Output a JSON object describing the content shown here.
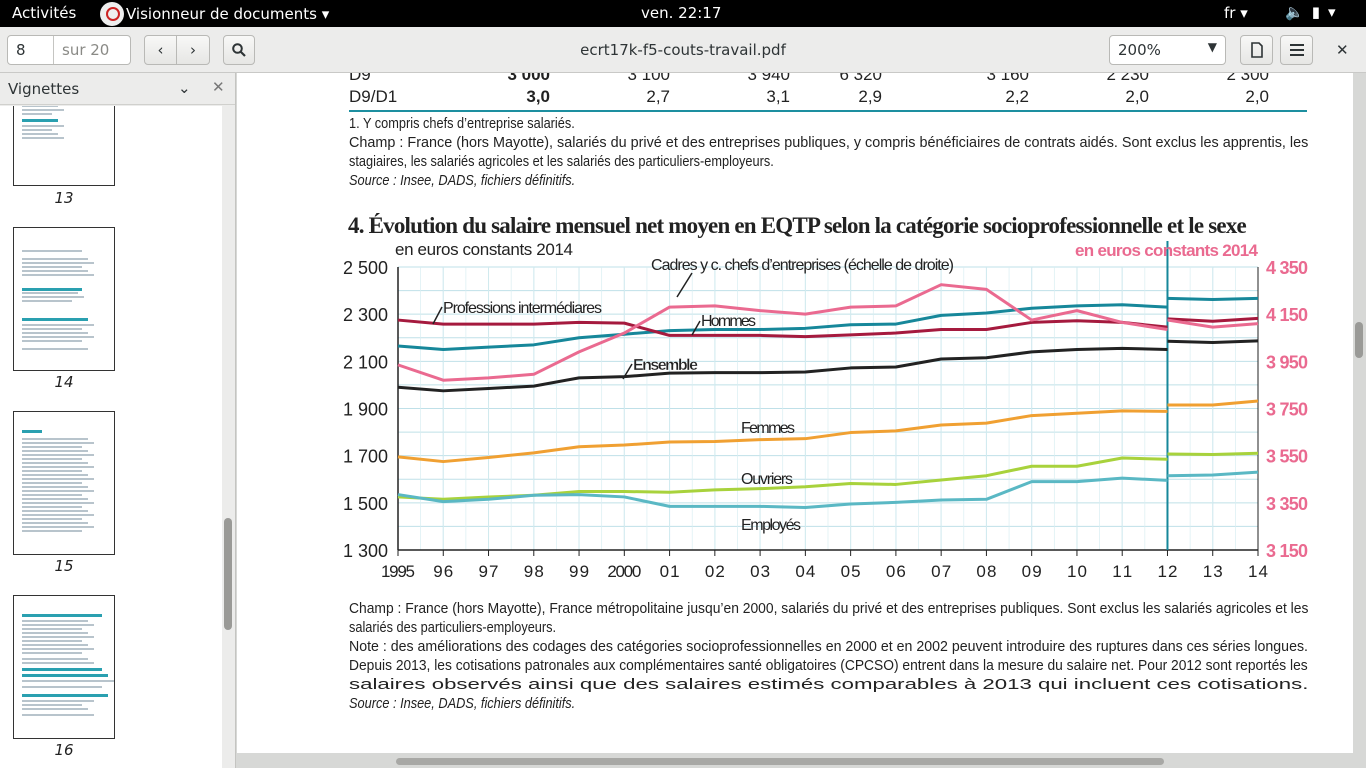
{
  "topbar": {
    "activities": "Activités",
    "app_menu": "Visionneur de documents ▾",
    "clock": "ven. 22:17",
    "lang": "fr ▾"
  },
  "toolbar": {
    "page_current": "8",
    "page_total": "sur 20",
    "doc_title": "ecrt17k-f5-couts-travail.pdf",
    "zoom": "200%"
  },
  "sidebar": {
    "title": "Vignettes",
    "thumbnails": [
      {
        "label": "13"
      },
      {
        "label": "14"
      },
      {
        "label": "15"
      },
      {
        "label": "16"
      }
    ]
  },
  "document": {
    "table_top": {
      "row_d9": [
        "D9",
        "3 000",
        "3 100",
        "3 940",
        "6 320",
        "3 160",
        "2 230",
        "2 300"
      ],
      "row_d9d1": [
        "D9/D1",
        "3,0",
        "2,7",
        "3,1",
        "2,9",
        "2,2",
        "2,0",
        "2,0"
      ]
    },
    "notes_top": [
      "1. Y compris chefs d’entreprise salariés.",
      "Champ : France (hors Mayotte), salariés du privé et des entreprises publiques, y compris bénéficiaires de contrats aidés. Sont exclus les apprentis, les",
      "stagiaires, les salariés agricoles et les salariés des particuliers-employeurs.",
      "Source : Insee, DADS, fichiers définitifs."
    ],
    "chart_heading": "4. Évolution du salaire mensuel net moyen en EQTP selon la catégorie socioprofessionnelle et le sexe",
    "notes_bottom": [
      "Champ : France (hors Mayotte), France métropolitaine jusqu’en 2000, salariés du privé et des entreprises publiques. Sont exclus les salariés agricoles et les",
      "salariés des particuliers-employeurs.",
      "Note : des améliorations des codages des catégories socioprofessionnelles en 2000 et en 2002 peuvent introduire des ruptures dans ces séries longues.",
      "Depuis 2013, les cotisations patronales aux complémentaires santé obligatoires (CPCSO) entrent dans la mesure du salaire net. Pour 2012 sont reportés les",
      "salaires observés ainsi que des salaires estimés comparables à 2013 qui incluent ces cotisations.",
      "Source : Insee, DADS, fichiers définitifs."
    ]
  },
  "colors": {
    "hommes": "#16879a",
    "prof_inter": "#a51a3e",
    "ensemble": "#222222",
    "femmes": "#f0a032",
    "ouvriers": "#a8d23c",
    "employes": "#5ab8c4",
    "cadres": "#ea6a90",
    "rule": "#1d8fa0"
  },
  "chart_data": {
    "type": "line",
    "title": "4. Évolution du salaire mensuel net moyen en EQTP selon la catégorie socioprofessionnelle et le sexe",
    "ylabel_left": "en euros constants 2014",
    "ylabel_right": "en euros constants 2014",
    "x_ticks": [
      "1995",
      "96",
      "97",
      "98",
      "99",
      "2000",
      "01",
      "02",
      "03",
      "04",
      "05",
      "06",
      "07",
      "08",
      "09",
      "10",
      "11",
      "12",
      "13",
      "14"
    ],
    "ylim_left": [
      1300,
      2500
    ],
    "yticks_left": [
      "1 300",
      "1 500",
      "1 700",
      "1 900",
      "2 100",
      "2 300",
      "2 500"
    ],
    "ylim_right": [
      3150,
      4350
    ],
    "yticks_right": [
      "3 150",
      "3 350",
      "3 550",
      "3 750",
      "3 950",
      "4 150",
      "4 350"
    ],
    "grid": true,
    "break_after": "12",
    "series": [
      {
        "name": "Hommes",
        "axis": "left",
        "x": [
          1995,
          1996,
          1997,
          1998,
          1999,
          2000,
          2001,
          2002,
          2003,
          2004,
          2005,
          2006,
          2007,
          2008,
          2009,
          2010,
          2011,
          2012
        ],
        "values": [
          2165,
          2150,
          2160,
          2170,
          2200,
          2215,
          2230,
          2235,
          2235,
          2240,
          2255,
          2258,
          2295,
          2305,
          2325,
          2335,
          2340,
          2330
        ],
        "x_after_break": [
          2012,
          2013,
          2014
        ],
        "values_after_break": [
          2367,
          2362,
          2367
        ]
      },
      {
        "name": "Professions intermédiares",
        "axis": "left",
        "x": [
          1995,
          1996,
          1997,
          1998,
          1999,
          2000,
          2001,
          2002,
          2003,
          2004,
          2005,
          2006,
          2007,
          2008,
          2009,
          2010,
          2011,
          2012
        ],
        "values": [
          2275,
          2258,
          2258,
          2258,
          2265,
          2262,
          2210,
          2210,
          2210,
          2205,
          2212,
          2220,
          2235,
          2235,
          2265,
          2272,
          2265,
          2245
        ],
        "x_after_break": [
          2012,
          2013,
          2014
        ],
        "values_after_break": [
          2280,
          2270,
          2282
        ]
      },
      {
        "name": "Ensemble",
        "axis": "left",
        "x": [
          1995,
          1996,
          1997,
          1998,
          1999,
          2000,
          2001,
          2002,
          2003,
          2004,
          2005,
          2006,
          2007,
          2008,
          2009,
          2010,
          2011,
          2012
        ],
        "values": [
          1990,
          1975,
          1985,
          1995,
          2030,
          2035,
          2050,
          2052,
          2052,
          2055,
          2072,
          2076,
          2110,
          2115,
          2140,
          2150,
          2155,
          2150
        ],
        "x_after_break": [
          2012,
          2013,
          2014
        ],
        "values_after_break": [
          2185,
          2180,
          2187
        ]
      },
      {
        "name": "Femmes",
        "axis": "left",
        "x": [
          1995,
          1996,
          1997,
          1998,
          1999,
          2000,
          2001,
          2002,
          2003,
          2004,
          2005,
          2006,
          2007,
          2008,
          2009,
          2010,
          2011,
          2012
        ],
        "values": [
          1695,
          1675,
          1692,
          1712,
          1738,
          1745,
          1758,
          1760,
          1768,
          1772,
          1798,
          1805,
          1830,
          1838,
          1870,
          1880,
          1890,
          1888
        ],
        "x_after_break": [
          2012,
          2013,
          2014
        ],
        "values_after_break": [
          1915,
          1915,
          1932
        ]
      },
      {
        "name": "Ouvriers",
        "axis": "left",
        "x": [
          1995,
          1996,
          1997,
          1998,
          1999,
          2000,
          2001,
          2002,
          2003,
          2004,
          2005,
          2006,
          2007,
          2008,
          2009,
          2010,
          2011,
          2012
        ],
        "values": [
          1525,
          1515,
          1525,
          1532,
          1548,
          1548,
          1545,
          1555,
          1560,
          1568,
          1582,
          1578,
          1597,
          1615,
          1655,
          1655,
          1690,
          1685
        ],
        "x_after_break": [
          2012,
          2013,
          2014
        ],
        "values_after_break": [
          1707,
          1705,
          1710
        ]
      },
      {
        "name": "Employés",
        "axis": "left",
        "x": [
          1995,
          1996,
          1997,
          1998,
          1999,
          2000,
          2001,
          2002,
          2003,
          2004,
          2005,
          2006,
          2007,
          2008,
          2009,
          2010,
          2011,
          2012
        ],
        "values": [
          1535,
          1505,
          1515,
          1532,
          1535,
          1525,
          1485,
          1485,
          1485,
          1480,
          1495,
          1502,
          1512,
          1515,
          1590,
          1590,
          1605,
          1595
        ],
        "x_after_break": [
          2012,
          2013,
          2014
        ],
        "values_after_break": [
          1615,
          1618,
          1630
        ]
      },
      {
        "name": "Cadres y c. chefs d’entreprises (échelle de droite)",
        "axis": "right",
        "x": [
          1995,
          1996,
          1997,
          1998,
          1999,
          2000,
          2001,
          2002,
          2003,
          2004,
          2005,
          2006,
          2007,
          2008,
          2009,
          2010,
          2011,
          2012
        ],
        "values": [
          3935,
          3870,
          3880,
          3895,
          3990,
          4070,
          4180,
          4185,
          4165,
          4150,
          4180,
          4185,
          4275,
          4255,
          4125,
          4165,
          4115,
          4085
        ],
        "x_after_break": [
          2012,
          2013,
          2014
        ],
        "values_after_break": [
          4125,
          4095,
          4110
        ]
      }
    ]
  }
}
